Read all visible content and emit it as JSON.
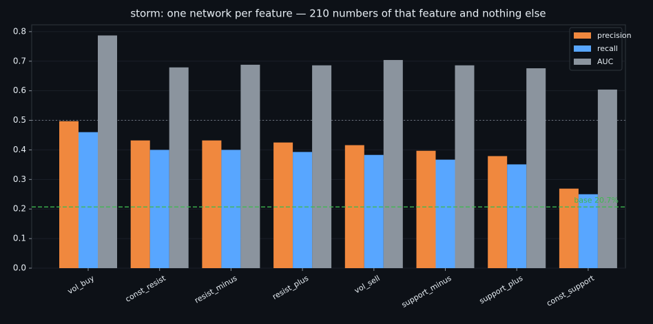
{
  "chart_data": {
    "type": "bar",
    "title": "storm: one network per feature — 210 numbers of that feature and nothing else",
    "categories": [
      "vol_buy",
      "const_resist",
      "resist_minus",
      "resist_plus",
      "vol_sell",
      "support_minus",
      "support_plus",
      "const_support"
    ],
    "series": [
      {
        "name": "precision",
        "color": "#f0883e",
        "values": [
          0.497,
          0.432,
          0.432,
          0.425,
          0.416,
          0.397,
          0.379,
          0.269
        ]
      },
      {
        "name": "recall",
        "color": "#58a6ff",
        "values": [
          0.46,
          0.4,
          0.4,
          0.393,
          0.383,
          0.367,
          0.351,
          0.25
        ]
      },
      {
        "name": "AUC",
        "color": "#8b949e",
        "values": [
          0.787,
          0.679,
          0.688,
          0.686,
          0.704,
          0.686,
          0.676,
          0.604
        ]
      }
    ],
    "ylim": [
      0,
      0.823
    ],
    "yticks": [
      {
        "value": 0,
        "label": "0.0"
      },
      0.1,
      0.2,
      0.3,
      0.4,
      0.5,
      0.6,
      0.7,
      0.8
    ],
    "grid": true,
    "reference_line": 0.5,
    "baseline": {
      "value": 0.207,
      "label": "base 20.7%",
      "color": "#3fb950"
    },
    "legend": "upper right"
  }
}
